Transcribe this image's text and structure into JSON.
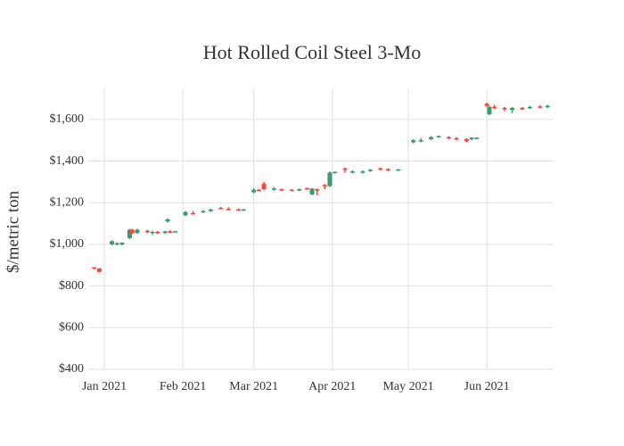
{
  "chart_data": {
    "type": "candlestick",
    "title": "Hot Rolled Coil Steel 3-Mo",
    "y_label": "$/metric ton",
    "increasing_color": "#3d9970",
    "decreasing_color": "#ff4136",
    "grid": true,
    "xlim": [
      "2020-12-26",
      "2021-06-27"
    ],
    "xticks": [
      {
        "value": "2021-01",
        "label": "Jan 2021"
      },
      {
        "value": "2021-02",
        "label": "Feb 2021"
      },
      {
        "value": "2021-03",
        "label": "Mar 2021"
      },
      {
        "value": "2021-04",
        "label": "Apr 2021"
      },
      {
        "value": "2021-05",
        "label": "May 2021"
      },
      {
        "value": "2021-06",
        "label": "Jun 2021"
      }
    ],
    "ylim": [
      400,
      1745
    ],
    "yticks": [
      {
        "value": 400,
        "label": "$400"
      },
      {
        "value": 600,
        "label": "$600"
      },
      {
        "value": 800,
        "label": "$800"
      },
      {
        "value": 1000,
        "label": "$1,000"
      },
      {
        "value": 1200,
        "label": "$1,200"
      },
      {
        "value": 1400,
        "label": "$1,400"
      },
      {
        "value": 1600,
        "label": "$1,600"
      }
    ],
    "x": [
      "2020-12-28",
      "2020-12-30",
      "2021-01-04",
      "2021-01-06",
      "2021-01-08",
      "2021-01-11",
      "2021-01-12",
      "2021-01-14",
      "2021-01-18",
      "2021-01-20",
      "2021-01-22",
      "2021-01-25",
      "2021-01-27",
      "2021-01-29",
      "2021-01-26",
      "2021-02-02",
      "2021-02-05",
      "2021-02-09",
      "2021-02-12",
      "2021-02-16",
      "2021-02-19",
      "2021-02-23",
      "2021-02-25",
      "2021-03-01",
      "2021-03-03",
      "2021-03-05",
      "2021-03-09",
      "2021-03-12",
      "2021-03-16",
      "2021-03-19",
      "2021-03-22",
      "2021-03-24",
      "2021-03-26",
      "2021-03-29",
      "2021-03-31",
      "2021-04-02",
      "2021-04-06",
      "2021-04-09",
      "2021-04-13",
      "2021-04-16",
      "2021-04-20",
      "2021-04-23",
      "2021-04-27",
      "2021-05-03",
      "2021-05-06",
      "2021-05-10",
      "2021-05-13",
      "2021-05-17",
      "2021-05-20",
      "2021-05-24",
      "2021-05-26",
      "2021-05-28",
      "2021-06-01",
      "2021-06-02",
      "2021-06-04",
      "2021-06-08",
      "2021-06-11",
      "2021-06-15",
      "2021-06-18",
      "2021-06-22",
      "2021-06-25"
    ],
    "open": [
      890,
      885,
      1000,
      1000,
      1000,
      1030,
      1070,
      1055,
      1065,
      1055,
      1060,
      1055,
      1062,
      1060,
      1110,
      1140,
      1150,
      1155,
      1160,
      1175,
      1170,
      1168,
      1165,
      1250,
      1262,
      1290,
      1265,
      1265,
      1262,
      1260,
      1270,
      1240,
      1265,
      1285,
      1280,
      1345,
      1365,
      1345,
      1345,
      1352,
      1365,
      1362,
      1358,
      1490,
      1495,
      1505,
      1515,
      1515,
      1510,
      1505,
      1505,
      1510,
      1675,
      1625,
      1660,
      1655,
      1645,
      1655,
      1655,
      1662,
      1658
    ],
    "high": [
      890,
      885,
      1020,
      1010,
      1010,
      1075,
      1075,
      1075,
      1070,
      1065,
      1065,
      1065,
      1068,
      1065,
      1125,
      1160,
      1160,
      1165,
      1170,
      1180,
      1178,
      1172,
      1170,
      1270,
      1265,
      1300,
      1275,
      1268,
      1266,
      1268,
      1272,
      1270,
      1268,
      1290,
      1350,
      1350,
      1368,
      1355,
      1355,
      1362,
      1368,
      1365,
      1362,
      1505,
      1510,
      1520,
      1522,
      1520,
      1515,
      1510,
      1515,
      1515,
      1680,
      1665,
      1670,
      1660,
      1660,
      1660,
      1665,
      1668,
      1670
    ],
    "low": [
      880,
      865,
      995,
      995,
      995,
      1025,
      1050,
      1050,
      1055,
      1045,
      1050,
      1050,
      1058,
      1058,
      1105,
      1135,
      1145,
      1150,
      1155,
      1170,
      1165,
      1160,
      1160,
      1245,
      1255,
      1260,
      1258,
      1255,
      1258,
      1255,
      1262,
      1235,
      1235,
      1265,
      1275,
      1340,
      1345,
      1340,
      1340,
      1348,
      1355,
      1350,
      1352,
      1485,
      1490,
      1500,
      1512,
      1505,
      1500,
      1490,
      1500,
      1505,
      1660,
      1620,
      1650,
      1640,
      1630,
      1645,
      1650,
      1655,
      1655
    ],
    "close": [
      885,
      868,
      1015,
      1005,
      1008,
      1070,
      1055,
      1070,
      1058,
      1060,
      1055,
      1062,
      1060,
      1063,
      1120,
      1155,
      1148,
      1160,
      1168,
      1172,
      1168,
      1165,
      1168,
      1262,
      1258,
      1265,
      1268,
      1260,
      1260,
      1265,
      1265,
      1268,
      1262,
      1280,
      1345,
      1348,
      1360,
      1350,
      1350,
      1358,
      1362,
      1358,
      1360,
      1500,
      1500,
      1515,
      1520,
      1510,
      1505,
      1495,
      1512,
      1512,
      1665,
      1660,
      1655,
      1650,
      1655,
      1652,
      1660,
      1658,
      1665
    ]
  }
}
